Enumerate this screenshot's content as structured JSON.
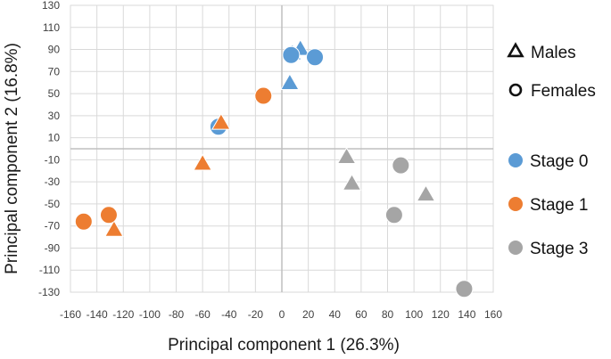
{
  "chart_data": {
    "type": "scatter",
    "title": "",
    "xlabel": "Principal component 1 (26.3%)",
    "ylabel": "Principal component 2 (16.8%)",
    "xlim": [
      -160,
      160
    ],
    "ylim": [
      -130,
      130
    ],
    "x_ticks": [
      -160,
      -140,
      -120,
      -100,
      -80,
      -60,
      -40,
      -20,
      0,
      20,
      40,
      60,
      80,
      100,
      120,
      140,
      160
    ],
    "y_ticks": [
      130,
      110,
      90,
      70,
      50,
      30,
      10,
      -10,
      -30,
      -50,
      -70,
      -90,
      -110,
      -130
    ],
    "grid": true,
    "legend_position": "right",
    "shape_legend": [
      {
        "label": "Males",
        "marker": "triangle"
      },
      {
        "label": "Females",
        "marker": "circle"
      }
    ],
    "color_legend": [
      {
        "label": "Stage 0",
        "color": "#5B9BD5"
      },
      {
        "label": "Stage 1",
        "color": "#ED7D31"
      },
      {
        "label": "Stage 3",
        "color": "#A5A5A5"
      }
    ],
    "series": [
      {
        "name": "Stage 0",
        "color": "#5B9BD5",
        "points": [
          {
            "x": 14,
            "y": 90,
            "sex": "male"
          },
          {
            "x": 8,
            "y": 86,
            "sex": "male"
          },
          {
            "x": 6,
            "y": 59,
            "sex": "male"
          },
          {
            "x": 7,
            "y": 85,
            "sex": "female"
          },
          {
            "x": 25,
            "y": 83,
            "sex": "female"
          },
          {
            "x": -48,
            "y": 20,
            "sex": "female"
          }
        ]
      },
      {
        "name": "Stage 1",
        "color": "#ED7D31",
        "points": [
          {
            "x": -46,
            "y": 23,
            "sex": "male"
          },
          {
            "x": -60,
            "y": -14,
            "sex": "male"
          },
          {
            "x": -127,
            "y": -74,
            "sex": "male"
          },
          {
            "x": -14,
            "y": 48,
            "sex": "female"
          },
          {
            "x": -150,
            "y": -66,
            "sex": "female"
          },
          {
            "x": -131,
            "y": -60,
            "sex": "female"
          }
        ]
      },
      {
        "name": "Stage 3",
        "color": "#A5A5A5",
        "points": [
          {
            "x": 49,
            "y": -8,
            "sex": "male"
          },
          {
            "x": 53,
            "y": -32,
            "sex": "male"
          },
          {
            "x": 109,
            "y": -42,
            "sex": "male"
          },
          {
            "x": 90,
            "y": -15,
            "sex": "female"
          },
          {
            "x": 85,
            "y": -60,
            "sex": "female"
          },
          {
            "x": 138,
            "y": -127,
            "sex": "female"
          }
        ]
      }
    ]
  }
}
